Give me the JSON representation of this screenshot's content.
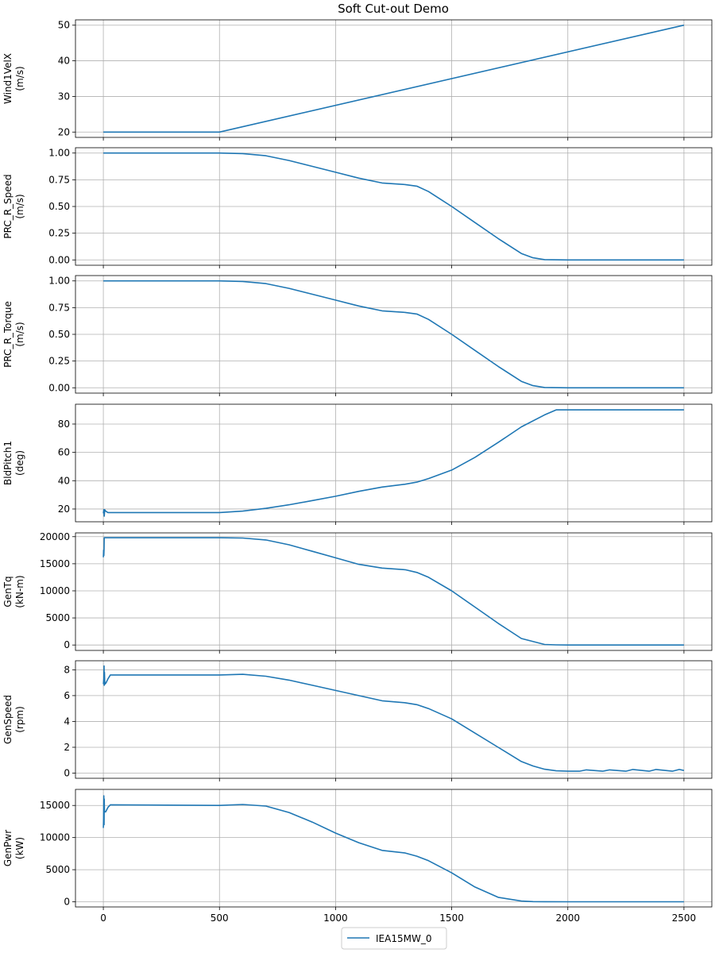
{
  "chart_data": {
    "type": "line",
    "title": "Soft Cut-out Demo",
    "x_ticks": [
      0,
      500,
      1000,
      1500,
      2000,
      2500
    ],
    "xlim": [
      -120,
      2620
    ],
    "grid": true,
    "legend": {
      "placement": "bottom-center",
      "entries": [
        "IEA15MW_0"
      ]
    },
    "line_color": "#1f77b4",
    "panels": [
      {
        "ylabel": [
          "Wind1VelX",
          "(m/s)"
        ],
        "ylim": [
          18.5,
          51.5
        ],
        "y_ticks": [
          20,
          30,
          40,
          50
        ],
        "tick_labels": [
          "20",
          "30",
          "40",
          "50"
        ],
        "series": [
          {
            "name": "IEA15MW_0",
            "x": [
              0,
              500,
              2500
            ],
            "y": [
              20,
              20,
              50
            ]
          }
        ]
      },
      {
        "ylabel": [
          "PRC_R_Speed",
          "(m/s)"
        ],
        "ylim": [
          -0.05,
          1.05
        ],
        "y_ticks": [
          0,
          0.25,
          0.5,
          0.75,
          1.0
        ],
        "tick_labels": [
          "0.00",
          "0.25",
          "0.50",
          "0.75",
          "1.00"
        ],
        "series": [
          {
            "name": "IEA15MW_0",
            "x": [
              0,
              500,
              600,
              700,
              800,
              900,
              1000,
              1100,
              1200,
              1300,
              1350,
              1400,
              1500,
              1600,
              1700,
              1800,
              1850,
              1900,
              2000,
              2500
            ],
            "y": [
              1,
              1,
              0.995,
              0.975,
              0.93,
              0.875,
              0.82,
              0.765,
              0.72,
              0.705,
              0.69,
              0.64,
              0.5,
              0.35,
              0.2,
              0.06,
              0.02,
              0.003,
              0,
              0
            ]
          }
        ]
      },
      {
        "ylabel": [
          "PRC_R_Torque",
          "(m/s)"
        ],
        "ylim": [
          -0.05,
          1.05
        ],
        "y_ticks": [
          0,
          0.25,
          0.5,
          0.75,
          1.0
        ],
        "tick_labels": [
          "0.00",
          "0.25",
          "0.50",
          "0.75",
          "1.00"
        ],
        "series": [
          {
            "name": "IEA15MW_0",
            "x": [
              0,
              500,
              600,
              700,
              800,
              900,
              1000,
              1100,
              1200,
              1300,
              1350,
              1400,
              1500,
              1600,
              1700,
              1800,
              1850,
              1900,
              2000,
              2500
            ],
            "y": [
              1,
              1,
              0.995,
              0.975,
              0.93,
              0.875,
              0.82,
              0.765,
              0.72,
              0.705,
              0.69,
              0.64,
              0.5,
              0.35,
              0.2,
              0.06,
              0.02,
              0.003,
              0,
              0
            ]
          }
        ]
      },
      {
        "ylabel": [
          "BldPitch1",
          "(deg)"
        ],
        "ylim": [
          11,
          94
        ],
        "y_ticks": [
          20,
          40,
          60,
          80
        ],
        "tick_labels": [
          "20",
          "40",
          "60",
          "80"
        ],
        "series": [
          {
            "name": "IEA15MW_0",
            "x": [
              0,
              2,
              4,
              6,
              10,
              20,
              500,
              600,
              700,
              800,
              900,
              1000,
              1100,
              1200,
              1300,
              1350,
              1400,
              1500,
              1600,
              1700,
              1800,
              1900,
              1950,
              2000,
              2500
            ],
            "y": [
              17,
              19.5,
              15,
              19.5,
              18.5,
              17.5,
              17.5,
              18.5,
              20.5,
              23,
              26,
              29,
              32.5,
              35.5,
              37.5,
              39,
              41.5,
              47.5,
              56.5,
              67,
              78,
              86.5,
              90,
              90,
              90
            ]
          }
        ]
      },
      {
        "ylabel": [
          "GenTq",
          "(kN-m)"
        ],
        "ylim": [
          -1000,
          20700
        ],
        "y_ticks": [
          0,
          5000,
          10000,
          15000,
          20000
        ],
        "tick_labels": [
          "0",
          "5000",
          "10000",
          "15000",
          "20000"
        ],
        "series": [
          {
            "name": "IEA15MW_0",
            "x": [
              0,
              1,
              2,
              3,
              4,
              5,
              500,
              600,
              700,
              800,
              900,
              1000,
              1100,
              1200,
              1300,
              1350,
              1400,
              1500,
              1600,
              1700,
              1800,
              1900,
              1950,
              2000,
              2500
            ],
            "y": [
              16200,
              17500,
              16500,
              17800,
              19800,
              19800,
              19800,
              19750,
              19400,
              18500,
              17300,
              16100,
              14900,
              14200,
              13900,
              13400,
              12500,
              10000,
              7000,
              4000,
              1200,
              100,
              20,
              0,
              0
            ]
          }
        ]
      },
      {
        "ylabel": [
          "GenSpeed",
          "(rpm)"
        ],
        "ylim": [
          -0.4,
          8.7
        ],
        "y_ticks": [
          0,
          2,
          4,
          6,
          8
        ],
        "tick_labels": [
          "0",
          "2",
          "4",
          "6",
          "8"
        ],
        "series": [
          {
            "name": "IEA15MW_0",
            "x": [
              0,
              2,
              3,
              4,
              5,
              6,
              8,
              12,
              20,
              30,
              40,
              500,
              600,
              700,
              800,
              900,
              1000,
              1100,
              1200,
              1300,
              1350,
              1400,
              1500,
              1600,
              1700,
              1800,
              1850,
              1900,
              1950,
              2000,
              2050,
              2080,
              2150,
              2180,
              2250,
              2280,
              2350,
              2380,
              2450,
              2480,
              2500
            ],
            "y": [
              6.9,
              7.3,
              8.3,
              6.8,
              7.8,
              7.1,
              6.9,
              7.0,
              7.3,
              7.6,
              7.6,
              7.6,
              7.65,
              7.5,
              7.2,
              6.8,
              6.4,
              6.0,
              5.6,
              5.45,
              5.3,
              5.0,
              4.2,
              3.1,
              2.0,
              0.9,
              0.55,
              0.3,
              0.18,
              0.15,
              0.15,
              0.25,
              0.15,
              0.25,
              0.15,
              0.28,
              0.15,
              0.28,
              0.15,
              0.28,
              0.2
            ]
          }
        ]
      },
      {
        "ylabel": [
          "GenPwr",
          "(kW)"
        ],
        "ylim": [
          -800,
          17500
        ],
        "y_ticks": [
          0,
          5000,
          10000,
          15000
        ],
        "tick_labels": [
          "0",
          "5000",
          "10000",
          "15000"
        ],
        "series": [
          {
            "name": "IEA15MW_0",
            "x": [
              0,
              1,
              2,
              3,
              4,
              5,
              6,
              10,
              20,
              30,
              500,
              600,
              700,
              800,
              900,
              1000,
              1100,
              1200,
              1300,
              1350,
              1400,
              1500,
              1600,
              1700,
              1800,
              1850,
              1900,
              2000,
              2500
            ],
            "y": [
              11500,
              13000,
              16500,
              12000,
              16000,
              14000,
              14000,
              14000,
              14700,
              15100,
              15000,
              15150,
              14900,
              13900,
              12400,
              10700,
              9200,
              8000,
              7600,
              7100,
              6400,
              4500,
              2300,
              700,
              120,
              30,
              10,
              0,
              0
            ]
          }
        ]
      }
    ]
  }
}
